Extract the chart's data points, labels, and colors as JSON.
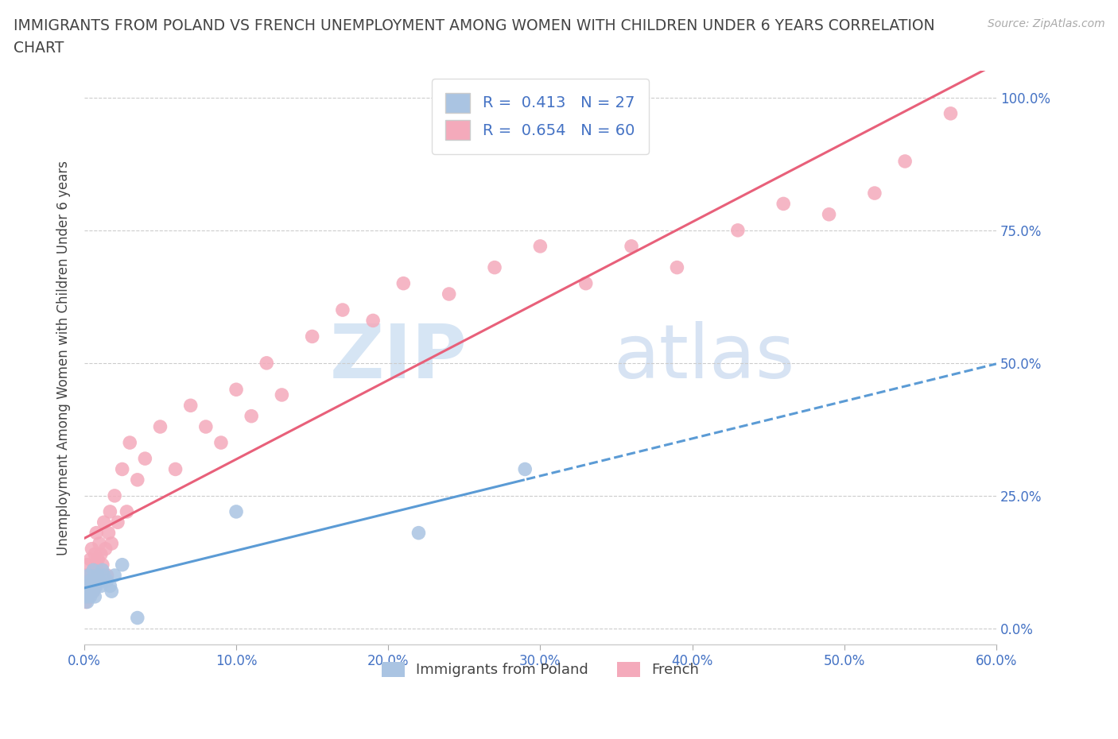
{
  "title_line1": "IMMIGRANTS FROM POLAND VS FRENCH UNEMPLOYMENT AMONG WOMEN WITH CHILDREN UNDER 6 YEARS CORRELATION",
  "title_line2": "CHART",
  "source": "Source: ZipAtlas.com",
  "ylabel": "Unemployment Among Women with Children Under 6 years",
  "xlabel": "",
  "xlim": [
    0.0,
    0.6
  ],
  "ylim": [
    -0.03,
    1.05
  ],
  "yticks": [
    0.0,
    0.25,
    0.5,
    0.75,
    1.0
  ],
  "ytick_labels": [
    "0.0%",
    "25.0%",
    "50.0%",
    "75.0%",
    "100.0%"
  ],
  "xticks": [
    0.0,
    0.1,
    0.2,
    0.3,
    0.4,
    0.5,
    0.6
  ],
  "xtick_labels": [
    "0.0%",
    "10.0%",
    "20.0%",
    "30.0%",
    "40.0%",
    "50.0%",
    "60.0%"
  ],
  "blue_color": "#aac4e2",
  "pink_color": "#f4aabb",
  "blue_line_color": "#5b9bd5",
  "pink_line_color": "#e8607a",
  "blue_R": 0.413,
  "blue_N": 27,
  "pink_R": 0.654,
  "pink_N": 60,
  "legend_label_blue": "Immigrants from Poland",
  "legend_label_pink": "French",
  "watermark_zip": "ZIP",
  "watermark_atlas": "atlas",
  "grid_color": "#cccccc",
  "bg_color": "#ffffff",
  "title_color": "#444444",
  "axis_color": "#4472c4",
  "text_color": "#444444",
  "blue_scatter_x": [
    0.001,
    0.002,
    0.002,
    0.003,
    0.003,
    0.004,
    0.004,
    0.005,
    0.006,
    0.006,
    0.007,
    0.007,
    0.008,
    0.009,
    0.01,
    0.011,
    0.012,
    0.013,
    0.015,
    0.017,
    0.018,
    0.02,
    0.025,
    0.035,
    0.1,
    0.22,
    0.29
  ],
  "blue_scatter_y": [
    0.06,
    0.05,
    0.08,
    0.07,
    0.1,
    0.06,
    0.09,
    0.08,
    0.07,
    0.11,
    0.09,
    0.06,
    0.08,
    0.1,
    0.09,
    0.08,
    0.11,
    0.1,
    0.09,
    0.08,
    0.07,
    0.1,
    0.12,
    0.02,
    0.22,
    0.18,
    0.3
  ],
  "pink_scatter_x": [
    0.001,
    0.001,
    0.002,
    0.002,
    0.003,
    0.003,
    0.004,
    0.004,
    0.005,
    0.005,
    0.006,
    0.006,
    0.007,
    0.007,
    0.008,
    0.008,
    0.009,
    0.009,
    0.01,
    0.01,
    0.011,
    0.012,
    0.013,
    0.014,
    0.015,
    0.016,
    0.017,
    0.018,
    0.02,
    0.022,
    0.025,
    0.028,
    0.03,
    0.035,
    0.04,
    0.05,
    0.06,
    0.07,
    0.08,
    0.09,
    0.1,
    0.11,
    0.12,
    0.13,
    0.15,
    0.17,
    0.19,
    0.21,
    0.24,
    0.27,
    0.3,
    0.33,
    0.36,
    0.39,
    0.43,
    0.46,
    0.49,
    0.52,
    0.54,
    0.57
  ],
  "pink_scatter_y": [
    0.05,
    0.1,
    0.07,
    0.12,
    0.06,
    0.09,
    0.08,
    0.13,
    0.1,
    0.15,
    0.07,
    0.11,
    0.08,
    0.14,
    0.12,
    0.18,
    0.09,
    0.13,
    0.1,
    0.16,
    0.14,
    0.12,
    0.2,
    0.15,
    0.1,
    0.18,
    0.22,
    0.16,
    0.25,
    0.2,
    0.3,
    0.22,
    0.35,
    0.28,
    0.32,
    0.38,
    0.3,
    0.42,
    0.38,
    0.35,
    0.45,
    0.4,
    0.5,
    0.44,
    0.55,
    0.6,
    0.58,
    0.65,
    0.63,
    0.68,
    0.72,
    0.65,
    0.72,
    0.68,
    0.75,
    0.8,
    0.78,
    0.82,
    0.88,
    0.97
  ]
}
